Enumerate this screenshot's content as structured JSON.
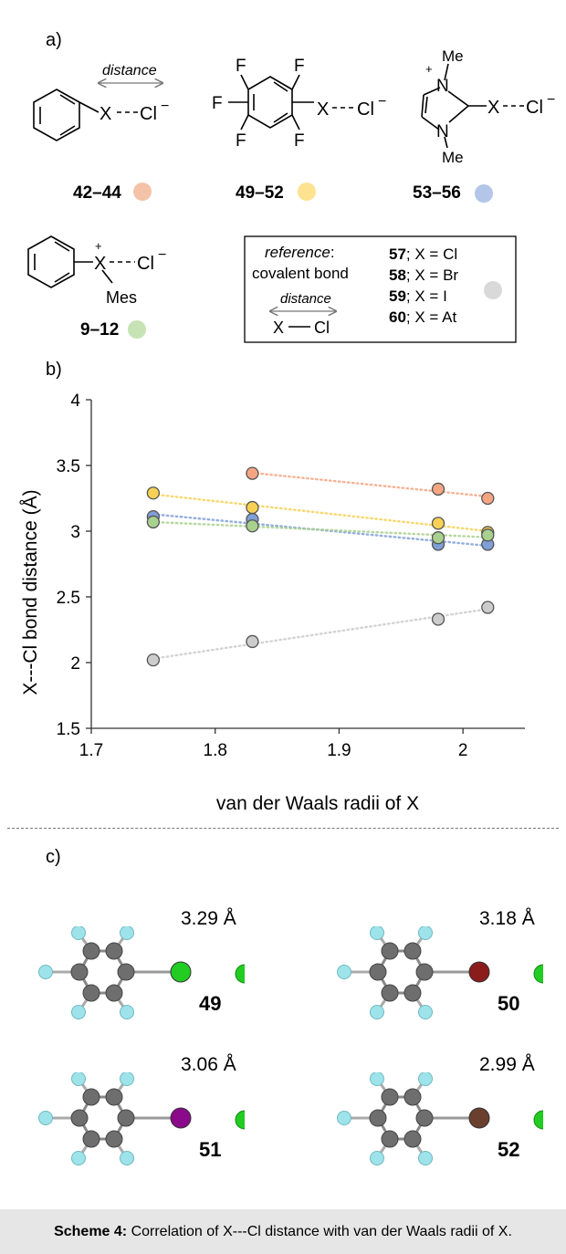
{
  "panel_labels": {
    "a": "a)",
    "b": "b)",
    "c": "c)"
  },
  "scheme_a": {
    "phenyl": {
      "x": "X",
      "cl": "Cl",
      "charge": "−",
      "distance_label": "distance",
      "compounds": "42–44",
      "color": "#f4c3a7"
    },
    "pentafluoro": {
      "f": "F",
      "x": "X",
      "cl": "Cl",
      "charge": "−",
      "compounds": "49–52",
      "color": "#fde28f"
    },
    "imidazolium": {
      "plus": "+",
      "n": "N",
      "me": "Me",
      "x": "X",
      "cl": "Cl",
      "charge": "−",
      "compounds": "53–56",
      "color": "#b3c5e8"
    },
    "iodonium": {
      "plus": "+",
      "x": "X",
      "cl": "Cl",
      "charge": "−",
      "mes": "Mes",
      "compounds": "9–12",
      "color": "#c6e3b5"
    },
    "reference": {
      "title": "reference",
      "colon": ":",
      "subtitle": "covalent bond",
      "distance_label": "distance",
      "x": "X",
      "cl": "Cl",
      "color": "#d9d9d9",
      "entries": [
        {
          "num": "57",
          "text": "; X = Cl"
        },
        {
          "num": "58",
          "text": "; X = Br"
        },
        {
          "num": "59",
          "text": "; X = I"
        },
        {
          "num": "60",
          "text": "; X = At"
        }
      ]
    }
  },
  "chart_data": {
    "type": "scatter",
    "xlabel": "van der Waals radii of X",
    "ylabel": "X---Cl bond distance (Å)",
    "xlim": [
      1.7,
      2.05
    ],
    "ylim": [
      1.5,
      4
    ],
    "xticks": [
      "1.7",
      "1.8",
      "1.9",
      "2"
    ],
    "yticks": [
      "1.5",
      "2",
      "2.5",
      "3",
      "3.5",
      "4"
    ],
    "grid": false,
    "series": [
      {
        "name": "42–44",
        "color": "#f4a582",
        "points": [
          [
            1.83,
            3.44
          ],
          [
            1.98,
            3.32
          ],
          [
            2.02,
            3.25
          ]
        ]
      },
      {
        "name": "49–52",
        "color": "#f7d154",
        "points": [
          [
            1.75,
            3.29
          ],
          [
            1.83,
            3.18
          ],
          [
            1.98,
            3.06
          ],
          [
            2.02,
            2.99
          ]
        ]
      },
      {
        "name": "53–56",
        "color": "#7f9fd6",
        "points": [
          [
            1.75,
            3.11
          ],
          [
            1.83,
            3.09
          ],
          [
            1.98,
            2.9
          ],
          [
            2.02,
            2.9
          ]
        ]
      },
      {
        "name": "9–12",
        "color": "#a9d18e",
        "points": [
          [
            1.75,
            3.07
          ],
          [
            1.83,
            3.04
          ],
          [
            1.98,
            2.95
          ],
          [
            2.02,
            2.97
          ]
        ]
      },
      {
        "name": "57–60",
        "color": "#cccccc",
        "points": [
          [
            1.75,
            2.02
          ],
          [
            1.83,
            2.16
          ],
          [
            1.98,
            2.33
          ],
          [
            2.02,
            2.42
          ]
        ]
      }
    ]
  },
  "structures": [
    {
      "distance": "3.29 Å",
      "label": "49",
      "halogen_color": "#22cc22"
    },
    {
      "distance": "3.18 Å",
      "label": "50",
      "halogen_color": "#8b1c1c"
    },
    {
      "distance": "3.06 Å",
      "label": "51",
      "halogen_color": "#8b0a8b"
    },
    {
      "distance": "2.99 Å",
      "label": "52",
      "halogen_color": "#6b3f2e"
    }
  ],
  "caption": {
    "label": "Scheme 4:",
    "text": " Correlation of X---Cl distance with van der Waals radii of X."
  }
}
